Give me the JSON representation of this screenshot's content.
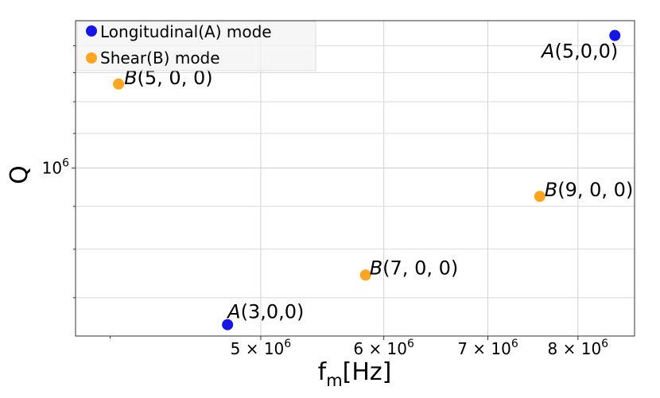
{
  "chart_data": {
    "type": "scatter",
    "xlabel_base": "f",
    "xlabel_sub": "m",
    "xlabel_unit": "[Hz]",
    "ylabel": "Q",
    "x_scale": "log",
    "y_scale": "log",
    "xlim": [
      3800000,
      8700000
    ],
    "ylim": [
      630000,
      1500000
    ],
    "x_ticks": [
      {
        "value": 5000000,
        "mantissa": "5",
        "exp": "6"
      },
      {
        "value": 6000000,
        "mantissa": "6",
        "exp": "6"
      },
      {
        "value": 7000000,
        "mantissa": "7",
        "exp": "6"
      },
      {
        "value": 8000000,
        "mantissa": "8",
        "exp": "6"
      }
    ],
    "x_minor_ticks": [
      4000000
    ],
    "y_major_ticks": [
      {
        "value": 1000000,
        "base": "10",
        "exp": "6"
      }
    ],
    "y_minor_ticks": [
      700000,
      800000,
      900000,
      1100000,
      1200000,
      1300000,
      1400000
    ],
    "grid": true,
    "legend_position": "top-left",
    "series": [
      {
        "name": "Longitudinal(A) mode",
        "color": "#1515e8",
        "points": [
          {
            "x": 4760000,
            "y": 650000,
            "label_letter": "A",
            "label_rest": "(3,0,0)"
          },
          {
            "x": 8450000,
            "y": 1440000,
            "label_letter": "A",
            "label_rest": "(5,0,0)"
          }
        ]
      },
      {
        "name": "Shear(B) mode",
        "color": "#ffa51f",
        "points": [
          {
            "x": 4050000,
            "y": 1260000,
            "label_letter": "B",
            "label_rest": "(5, 0, 0)"
          },
          {
            "x": 5840000,
            "y": 745000,
            "label_letter": "B",
            "label_rest": "(7, 0, 0)"
          },
          {
            "x": 7560000,
            "y": 925000,
            "label_letter": "B",
            "label_rest": "(9, 0, 0)"
          }
        ]
      }
    ]
  }
}
